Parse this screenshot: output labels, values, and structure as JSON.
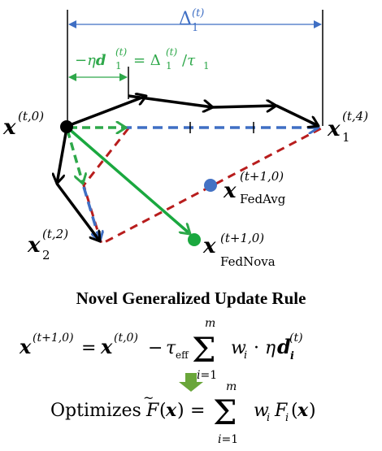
{
  "diagram": {
    "colors": {
      "local_path": "#000000",
      "delta_arrow": "#3f6fc4",
      "normalized_step": "#2ea84a",
      "fednova_dot": "#1aa83f",
      "fedavg_dot": "#4472c4",
      "dashed_triangle": "#b81d1d",
      "down_arrow": "#6aa63a"
    },
    "labels": {
      "start_point": "x^(t,0)",
      "client1_end": "x_1^(t,4)",
      "client2_end": "x_2^(t,2)",
      "fedavg_point": "x_FedAvg^(t+1,0)",
      "fednova_point": "x_FedNova^(t+1,0)",
      "delta_label": "Δ_1^(t)",
      "step_label": "−η d_1^(t) = Δ_1^(t) / τ_1"
    }
  },
  "rule": {
    "title": "Novel Generalized Update Rule",
    "equation": "x^(t+1,0) = x^(t,0) − τ_eff Σ_{i=1}^{m} w_i · η d_i^(t)",
    "optimizes_label": "Optimizes",
    "objective": "F̃(x) = Σ_{i=1}^{m} w_i F_i(x)"
  }
}
